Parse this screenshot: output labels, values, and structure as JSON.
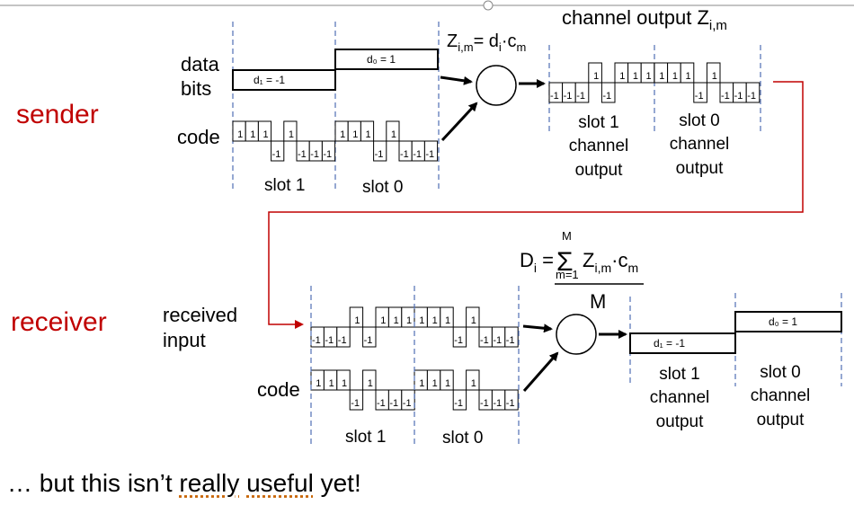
{
  "labels": {
    "sender": "sender",
    "receiver": "receiver",
    "data_bits_line1": "data",
    "data_bits_line2": "bits",
    "code": "code",
    "received_input_line1": "received",
    "received_input_line2": "input",
    "channel_output_title": "channel output Z",
    "channel_output_sub": "i,m"
  },
  "sender": {
    "d1": "d₁ = -1",
    "d0": "d₀ = 1",
    "slot1": "slot 1",
    "slot0": "slot 0",
    "code_top": [
      "1",
      "1",
      "1",
      "1",
      "1",
      "1",
      "1",
      "1"
    ],
    "code_bottom": [
      "-1",
      "-1",
      "-1",
      "-1"
    ]
  },
  "formula_z": {
    "lhs": "Z",
    "lhs_sub": "i,m",
    "eq": "= d",
    "d_sub": "i",
    "dot": "·c",
    "c_sub": "m"
  },
  "formula_d": {
    "lhs": "D",
    "lhs_sub": "i",
    "eq": " = ",
    "sigma": "Σ",
    "upper": "M",
    "lower": "m=1",
    "body": "Z",
    "body_sub": "i,m",
    "dot": "·c",
    "c_sub": "m",
    "denominator": "M"
  },
  "sender_output": {
    "slot1": [
      "slot 1",
      "channel",
      "output"
    ],
    "slot0": [
      "slot 0",
      "channel",
      "output"
    ]
  },
  "receiver": {
    "slot1": "slot 1",
    "slot0": "slot 0"
  },
  "receiver_output": {
    "d1": "d₁ = -1",
    "d0": "d₀ = 1",
    "slot1": [
      "slot 1",
      "channel",
      "output"
    ],
    "slot0": [
      "slot 0",
      "channel",
      "output"
    ]
  },
  "colors": {
    "accent_red": "#c00000",
    "dashed_blue": "#4f6fb5",
    "text": "#000000"
  },
  "note": {
    "prefix": "… but this isn’t ",
    "u1": "really",
    "mid": " ",
    "u2": "useful",
    "suffix": " yet!"
  }
}
